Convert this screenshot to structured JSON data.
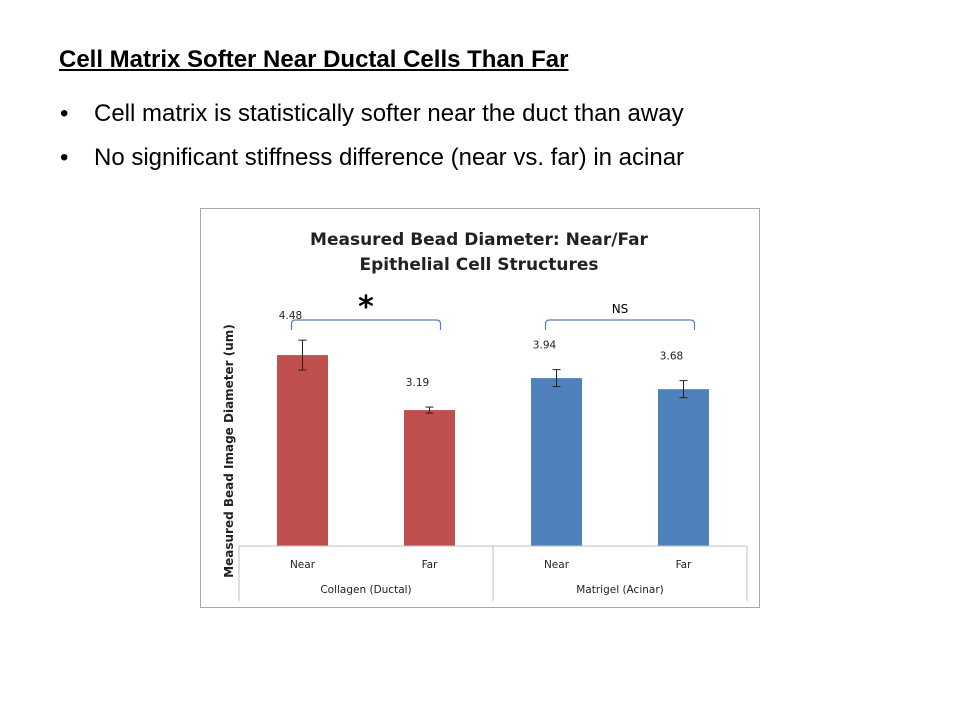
{
  "slide": {
    "title": "Cell Matrix Softer Near Ductal Cells Than Far",
    "bullets": [
      "Cell matrix is statistically softer near the duct than away",
      "No significant stiffness difference (near vs. far) in acinar"
    ]
  },
  "chart_data": {
    "type": "bar",
    "title_lines": [
      "Measured Bead Diameter: Near/Far",
      "Epithelial Cell Structures"
    ],
    "ylabel": "Measured Bead Image Diameter (um)",
    "xlabel": "",
    "ylim": [
      0,
      6.5
    ],
    "grid": false,
    "categories": [
      "Near",
      "Far",
      "Near",
      "Far"
    ],
    "groups": [
      {
        "label": "Collagen (Ductal)",
        "span": [
          0,
          1
        ],
        "significance": "*"
      },
      {
        "label": "Matrigel (Acinar)",
        "span": [
          2,
          3
        ],
        "significance": "NS"
      }
    ],
    "bars": [
      {
        "category": "Near",
        "group": "Collagen (Ductal)",
        "value": 4.48,
        "label": "4.48",
        "error": 0.35,
        "color": "#c0504d"
      },
      {
        "category": "Far",
        "group": "Collagen (Ductal)",
        "value": 3.19,
        "label": "3.19",
        "error": 0.07,
        "color": "#c0504d"
      },
      {
        "category": "Near",
        "group": "Matrigel (Acinar)",
        "value": 3.94,
        "label": "3.94",
        "error": 0.2,
        "color": "#4f81bd"
      },
      {
        "category": "Far",
        "group": "Matrigel (Acinar)",
        "value": 3.68,
        "label": "3.68",
        "error": 0.2,
        "color": "#4f81bd"
      }
    ]
  }
}
